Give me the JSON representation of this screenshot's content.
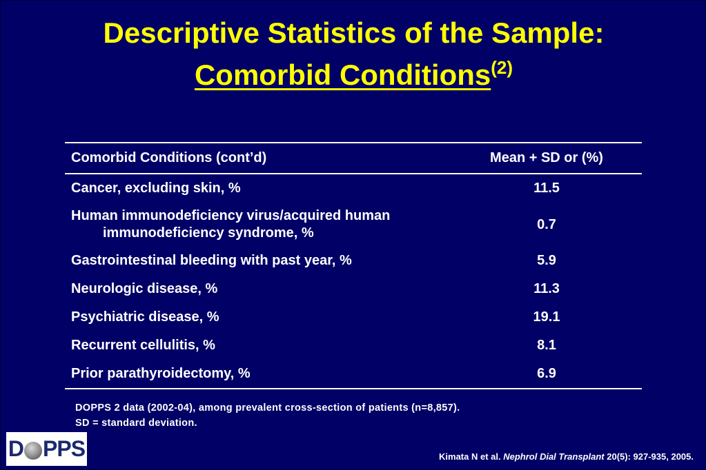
{
  "title": {
    "line1": "Descriptive Statistics of the Sample:",
    "line2": "Comorbid Conditions",
    "superscript": "(2)"
  },
  "table": {
    "headers": [
      "Comorbid Conditions (cont’d)",
      "Mean + SD or (%)"
    ],
    "rows": [
      {
        "condition": "Cancer, excluding skin, %",
        "value": "11.5"
      },
      {
        "condition_line1": "Human immunodeficiency virus/acquired human",
        "condition_line2": "immunodeficiency syndrome, %",
        "value": "0.7"
      },
      {
        "condition": "Gastrointestinal bleeding with past year, %",
        "value": "5.9"
      },
      {
        "condition": "Neurologic disease, %",
        "value": "11.3"
      },
      {
        "condition": "Psychiatric disease, %",
        "value": "19.1"
      },
      {
        "condition": "Recurrent cellulitis, %",
        "value": "8.1"
      },
      {
        "condition": "Prior parathyroidectomy, %",
        "value": "6.9"
      }
    ]
  },
  "notes": [
    "DOPPS 2 data (2002-04), among prevalent cross-section of patients (n=8,857).",
    "SD = standard deviation."
  ],
  "logo": {
    "part1": "D",
    "part2": "PPS"
  },
  "citation": {
    "authors": "Kimata N et al. ",
    "journal": "Nephrol Dial Transplant",
    "details": " 20(5): 927-935, 2005."
  },
  "colors": {
    "background": "#000066",
    "title": "#ffff00",
    "text": "#ffffff"
  }
}
